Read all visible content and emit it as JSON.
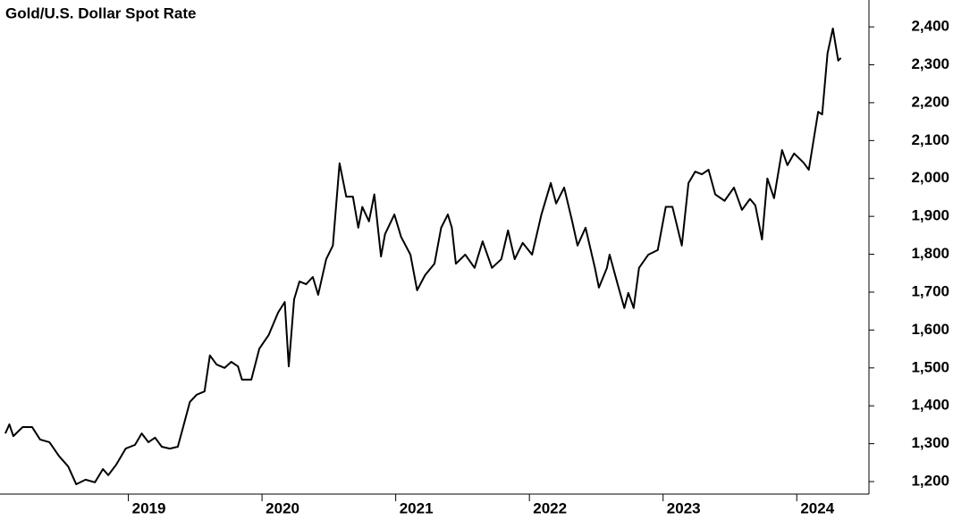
{
  "chart_data": {
    "type": "line",
    "title": "Gold/U.S. Dollar Spot Rate",
    "x": [
      2018.08,
      2018.11,
      2018.14,
      2018.21,
      2018.28,
      2018.34,
      2018.41,
      2018.48,
      2018.55,
      2018.61,
      2018.68,
      2018.75,
      2018.81,
      2018.85,
      2018.91,
      2018.98,
      2019.05,
      2019.1,
      2019.15,
      2019.2,
      2019.25,
      2019.31,
      2019.37,
      2019.41,
      2019.46,
      2019.51,
      2019.57,
      2019.61,
      2019.66,
      2019.72,
      2019.77,
      2019.82,
      2019.85,
      2019.92,
      2019.98,
      2020.05,
      2020.12,
      2020.17,
      2020.2,
      2020.24,
      2020.28,
      2020.33,
      2020.38,
      2020.42,
      2020.48,
      2020.53,
      2020.58,
      2020.63,
      2020.68,
      2020.72,
      2020.75,
      2020.8,
      2020.84,
      2020.89,
      2020.92,
      2020.99,
      2021.04,
      2021.11,
      2021.16,
      2021.22,
      2021.29,
      2021.34,
      2021.39,
      2021.42,
      2021.45,
      2021.52,
      2021.59,
      2021.65,
      2021.72,
      2021.79,
      2021.84,
      2021.89,
      2021.95,
      2022.02,
      2022.09,
      2022.16,
      2022.2,
      2022.26,
      2022.32,
      2022.36,
      2022.42,
      2022.49,
      2022.52,
      2022.58,
      2022.6,
      2022.66,
      2022.71,
      2022.74,
      2022.78,
      2022.82,
      2022.89,
      2022.96,
      2023.02,
      2023.07,
      2023.14,
      2023.19,
      2023.24,
      2023.29,
      2023.34,
      2023.39,
      2023.46,
      2023.53,
      2023.59,
      2023.65,
      2023.69,
      2023.74,
      2023.78,
      2023.83,
      2023.89,
      2023.93,
      2023.98,
      2024.05,
      2024.09,
      2024.16,
      2024.19,
      2024.23,
      2024.27,
      2024.31,
      2024.33
    ],
    "series": [
      {
        "name": "Gold/U.S. Dollar Spot Rate",
        "color": "#000000",
        "values": [
          1327,
          1351,
          1320,
          1344,
          1344,
          1311,
          1304,
          1268,
          1240,
          1193,
          1205,
          1198,
          1233,
          1217,
          1245,
          1287,
          1297,
          1327,
          1304,
          1316,
          1292,
          1287,
          1292,
          1344,
          1410,
          1429,
          1438,
          1533,
          1509,
          1500,
          1516,
          1504,
          1469,
          1469,
          1551,
          1587,
          1646,
          1674,
          1504,
          1681,
          1728,
          1721,
          1740,
          1693,
          1787,
          1823,
          2040,
          1952,
          1952,
          1870,
          1925,
          1887,
          1958,
          1794,
          1853,
          1905,
          1846,
          1799,
          1705,
          1745,
          1775,
          1870,
          1905,
          1870,
          1775,
          1799,
          1764,
          1834,
          1764,
          1787,
          1863,
          1787,
          1830,
          1799,
          1905,
          1988,
          1934,
          1976,
          1887,
          1823,
          1870,
          1764,
          1712,
          1764,
          1799,
          1721,
          1658,
          1698,
          1658,
          1764,
          1799,
          1811,
          1925,
          1925,
          1823,
          1988,
          2018,
          2011,
          2023,
          1958,
          1941,
          1976,
          1917,
          1946,
          1929,
          1839,
          2000,
          1948,
          2075,
          2035,
          2066,
          2042,
          2023,
          2176,
          2169,
          2330,
          2396,
          2311,
          2318
        ]
      }
    ],
    "xlim": [
      2018.04,
      2024.54
    ],
    "xticks": [
      2019,
      2020,
      2021,
      2022,
      2023,
      2024
    ],
    "ylim": [
      1167,
      2471
    ],
    "yticks": [
      {
        "value": 1200,
        "label": "1,200"
      },
      {
        "value": 1300,
        "label": "1,300"
      },
      {
        "value": 1400,
        "label": "1,400"
      },
      {
        "value": 1500,
        "label": "1,500"
      },
      {
        "value": 1600,
        "label": "1,600"
      },
      {
        "value": 1700,
        "label": "1,700"
      },
      {
        "value": 1800,
        "label": "1,800"
      },
      {
        "value": 1900,
        "label": "1,900"
      },
      {
        "value": 2000,
        "label": "2,000"
      },
      {
        "value": 2100,
        "label": "2,100"
      },
      {
        "value": 2200,
        "label": "2,200"
      },
      {
        "value": 2300,
        "label": "2,300"
      },
      {
        "value": 2400,
        "label": "2,400"
      }
    ]
  }
}
